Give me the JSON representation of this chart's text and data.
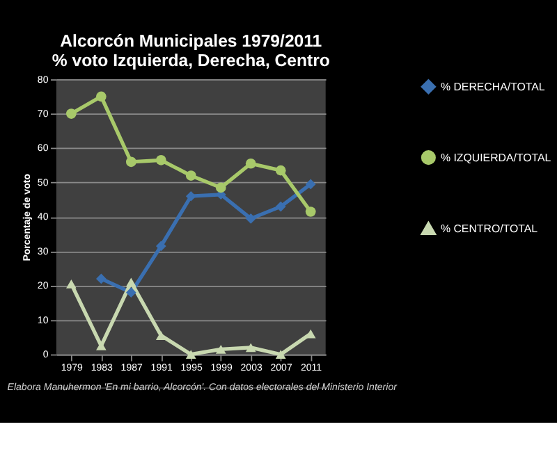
{
  "chart_data": {
    "type": "line",
    "title": [
      "Alcorcón Municipales 1979/2011",
      "% voto Izquierda, Derecha, Centro"
    ],
    "ylabel": "Porcentaje de voto",
    "categories": [
      "1979",
      "1983",
      "1987",
      "1991",
      "1995",
      "1999",
      "2003",
      "2007",
      "2011"
    ],
    "series": [
      {
        "name": "% DERECHA/TOTAL",
        "color": "#3a6fb0",
        "marker": "diamond",
        "values": [
          null,
          22,
          18,
          31.5,
          46,
          46.5,
          39.5,
          43,
          49.5
        ]
      },
      {
        "name": "% IZQUIERDA/TOTAL",
        "color": "#a8c96a",
        "marker": "circle",
        "values": [
          70,
          75,
          56,
          56.5,
          52,
          48.5,
          55.5,
          53.5,
          41.5
        ]
      },
      {
        "name": "% CENTRO/TOTAL",
        "color": "#c8d8b0",
        "marker": "triangle",
        "values": [
          20.5,
          2.5,
          21,
          5.5,
          0,
          1.5,
          2,
          0,
          6
        ]
      }
    ],
    "ylim": [
      0,
      80
    ],
    "yticks": [
      0,
      10,
      20,
      30,
      40,
      50,
      60,
      70,
      80
    ],
    "grid": "y",
    "legend": "right",
    "line_style": "solid",
    "annotations": [
      "Elabora Manuhermon 'En mi barrio, Alcorcón'. Con datos electorales del Ministerio Interior"
    ]
  }
}
